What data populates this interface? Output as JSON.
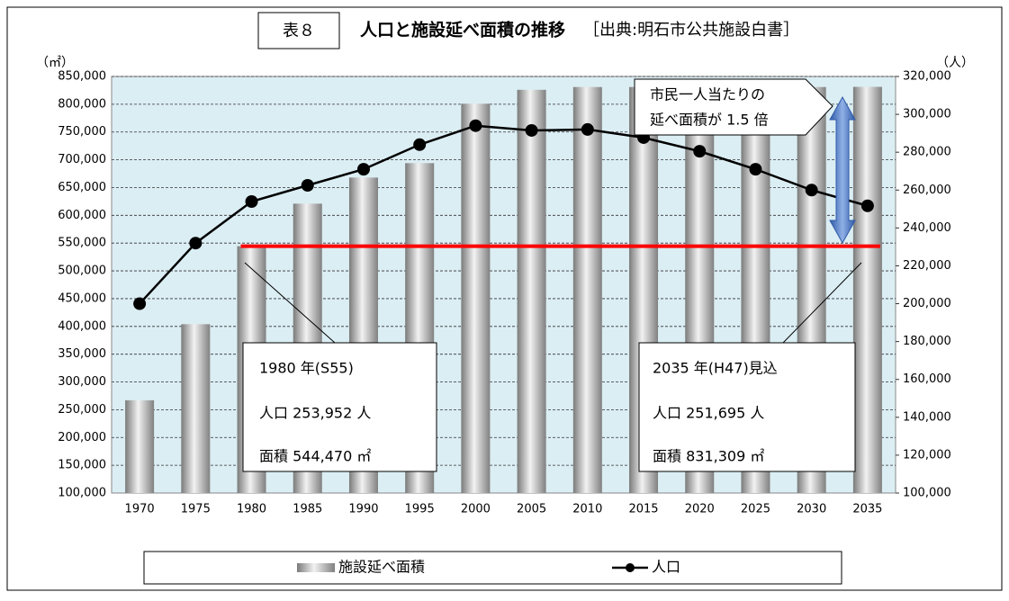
{
  "chart_data": {
    "type": "bar_line",
    "table_label": "表８",
    "title": "人口と施設延べ面積の推移",
    "source": "［出典:明石市公共施設白書］",
    "y_unit": "（㎡）",
    "y2_unit": "（人）",
    "categories": [
      "1970",
      "1975",
      "1980",
      "1985",
      "1990",
      "1995",
      "2000",
      "2005",
      "2010",
      "2015",
      "2020",
      "2025",
      "2030",
      "2035"
    ],
    "series": [
      {
        "name": "施設延べ面積",
        "type": "bar",
        "color": "#9a9a9a",
        "axis": "y",
        "values": [
          267000,
          404000,
          544470,
          621000,
          668000,
          694000,
          801000,
          826000,
          831000,
          831000,
          831000,
          831000,
          831000,
          831309
        ]
      },
      {
        "name": "人口",
        "type": "line",
        "color": "#000000",
        "axis": "y2",
        "values": [
          200000,
          232000,
          253952,
          262500,
          271000,
          284000,
          294000,
          291500,
          292000,
          287700,
          280500,
          271000,
          260000,
          251695
        ]
      }
    ],
    "ylim": [
      100000,
      850000
    ],
    "yticks": [
      {
        "value": 100000,
        "label": "100,000"
      },
      {
        "value": 150000,
        "label": "150,000"
      },
      {
        "value": 200000,
        "label": "200,000"
      },
      {
        "value": 250000,
        "label": "250,000"
      },
      {
        "value": 300000,
        "label": "300,000"
      },
      {
        "value": 350000,
        "label": "350,000"
      },
      {
        "value": 400000,
        "label": "400,000"
      },
      {
        "value": 450000,
        "label": "450,000"
      },
      {
        "value": 500000,
        "label": "500,000"
      },
      {
        "value": 550000,
        "label": "550,000"
      },
      {
        "value": 600000,
        "label": "600,000"
      },
      {
        "value": 650000,
        "label": "650,000"
      },
      {
        "value": 700000,
        "label": "700,000"
      },
      {
        "value": 750000,
        "label": "750,000"
      },
      {
        "value": 800000,
        "label": "800,000"
      },
      {
        "value": 850000,
        "label": "850,000"
      }
    ],
    "y2lim": [
      100000,
      320000
    ],
    "y2ticks": [
      {
        "value": 100000,
        "label": "100,000"
      },
      {
        "value": 120000,
        "label": "120,000"
      },
      {
        "value": 140000,
        "label": "140,000"
      },
      {
        "value": 160000,
        "label": "160,000"
      },
      {
        "value": 180000,
        "label": "180,000"
      },
      {
        "value": 200000,
        "label": "200,000"
      },
      {
        "value": 220000,
        "label": "220,000"
      },
      {
        "value": 240000,
        "label": "240,000"
      },
      {
        "value": 260000,
        "label": "260,000"
      },
      {
        "value": 280000,
        "label": "280,000"
      },
      {
        "value": 300000,
        "label": "300,000"
      },
      {
        "value": 320000,
        "label": "320,000"
      }
    ],
    "grid": true,
    "annotations": [
      "1980 年(S55)",
      "人口 253,952 人",
      "面積 544,470 ㎡",
      "2035 年(H47)見込",
      "人口 251,695 人",
      "面積 831,309 ㎡",
      "市民一人当たりの",
      "延べ面積が 1.5 倍"
    ]
  }
}
